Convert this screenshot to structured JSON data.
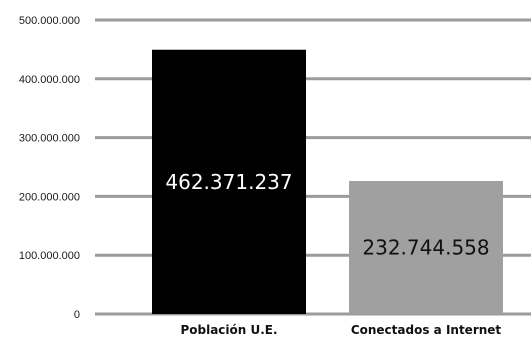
{
  "chart_data": {
    "type": "bar",
    "categories": [
      "Población U.E.",
      "Conectados a Internet"
    ],
    "values": [
      462371237,
      232744558
    ],
    "data_labels": [
      "462.371.237",
      "232.744.558"
    ],
    "bar_colors": [
      "#000000",
      "#a0a0a0"
    ],
    "data_label_colors": [
      "#ffffff",
      "#111111"
    ],
    "gridline_color": "#9b9b9b",
    "y_ticks": [
      0,
      100000000,
      200000000,
      300000000,
      400000000,
      500000000
    ],
    "y_tick_labels": [
      "0",
      "100.000.000",
      "200.000.000",
      "300.000.000",
      "400.000.000",
      "500.000.000"
    ],
    "ylim": [
      0,
      500000000
    ],
    "grid": true,
    "legend": "none",
    "title": "",
    "xlabel": "",
    "ylabel": ""
  }
}
